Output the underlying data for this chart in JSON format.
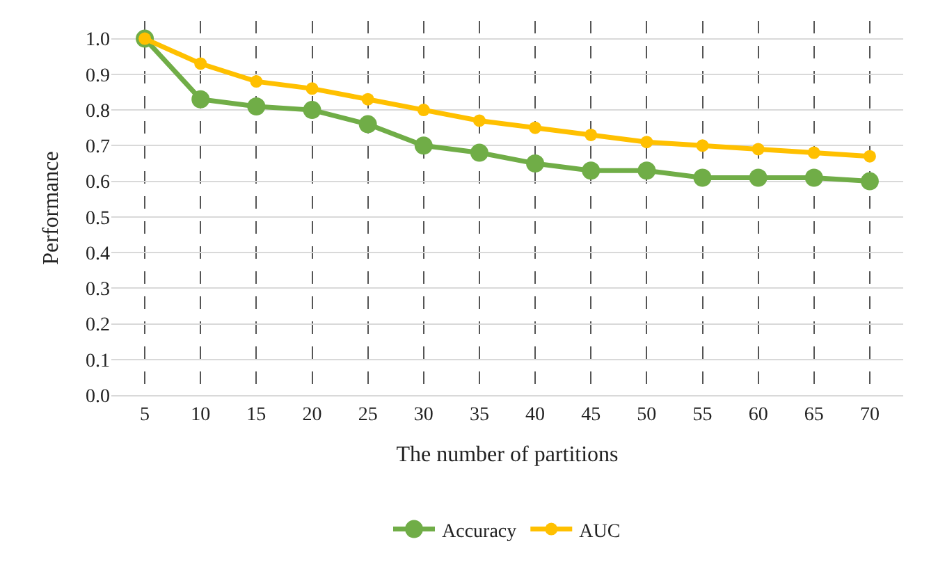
{
  "chart_data": {
    "type": "line",
    "xlabel": "The number of partitions",
    "ylabel": "Performance",
    "categories": [
      "5",
      "10",
      "15",
      "20",
      "25",
      "30",
      "35",
      "40",
      "45",
      "50",
      "55",
      "60",
      "65",
      "70"
    ],
    "series": [
      {
        "name": "Accuracy",
        "color": "#70ad47",
        "values": [
          1.0,
          0.83,
          0.81,
          0.8,
          0.76,
          0.7,
          0.68,
          0.65,
          0.63,
          0.63,
          0.61,
          0.61,
          0.61,
          0.6
        ]
      },
      {
        "name": "AUC",
        "color": "#ffc000",
        "values": [
          1.0,
          0.93,
          0.88,
          0.86,
          0.83,
          0.8,
          0.77,
          0.75,
          0.73,
          0.71,
          0.7,
          0.69,
          0.68,
          0.67
        ]
      }
    ],
    "ylim": [
      0,
      1.05
    ],
    "yticks": [
      {
        "value": 0,
        "label": "0.0"
      },
      {
        "value": 0.1,
        "label": "0.1"
      },
      {
        "value": 0.2,
        "label": "0.2"
      },
      {
        "value": 0.3,
        "label": "0.3"
      },
      {
        "value": 0.4,
        "label": "0.4"
      },
      {
        "value": 0.5,
        "label": "0.5"
      },
      {
        "value": 0.6,
        "label": "0.6"
      },
      {
        "value": 0.7,
        "label": "0.7"
      },
      {
        "value": 0.8,
        "label": "0.8"
      },
      {
        "value": 0.9,
        "label": "0.9"
      },
      {
        "value": 1.0,
        "label": "1.0"
      }
    ],
    "grid": true,
    "legend": "bottom",
    "marker": "circle",
    "line_style": "solid"
  }
}
